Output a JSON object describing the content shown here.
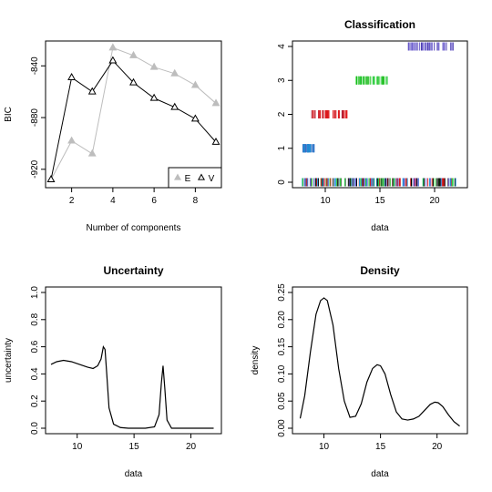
{
  "chart_data": [
    {
      "id": "bic",
      "type": "line",
      "title": "",
      "xlabel": "Number of components",
      "ylabel": "BIC",
      "xlim": [
        1,
        9
      ],
      "ylim": [
        -930,
        -825
      ],
      "xticks": [
        2,
        4,
        6,
        8
      ],
      "yticks": [
        -920,
        -880,
        -840
      ],
      "series": [
        {
          "name": "E",
          "color": "#bdbdbd",
          "marker": "filled-triangle",
          "x": [
            1,
            2,
            3,
            4,
            5,
            6,
            7,
            8,
            9
          ],
          "y": [
            -928,
            -898,
            -908,
            -826,
            -832,
            -841,
            -846,
            -855,
            -869
          ]
        },
        {
          "name": "V",
          "color": "#000000",
          "marker": "open-triangle",
          "x": [
            1,
            2,
            3,
            4,
            5,
            6,
            7,
            8,
            9
          ],
          "y": [
            -928,
            -849,
            -860,
            -836,
            -853,
            -865,
            -872,
            -881,
            -899
          ]
        }
      ],
      "legend": {
        "position": "bottom-right",
        "entries": [
          "E",
          "V"
        ]
      }
    },
    {
      "id": "classification",
      "type": "scatter",
      "title": "Classification",
      "xlabel": "data",
      "ylabel": "",
      "xlim": [
        7.5,
        22.5
      ],
      "ylim": [
        0,
        4
      ],
      "xticks": [
        10,
        15,
        20
      ],
      "yticks": [
        0,
        1,
        2,
        3,
        4
      ],
      "marker": "vertical-bar",
      "classes": [
        {
          "class": 1,
          "x_range": [
            7.9,
            9.0
          ],
          "colors": [
            "#1f8fd6",
            "#3b6fc4"
          ]
        },
        {
          "class": 2,
          "x_range": [
            8.6,
            12.1
          ],
          "colors": [
            "#d7191c",
            "#b2182b",
            "#e31a1c"
          ]
        },
        {
          "class": 3,
          "x_range": [
            12.8,
            15.7
          ],
          "colors": [
            "#2ecc40",
            "#5bd75b",
            "#11b811"
          ]
        },
        {
          "class": 4,
          "x_range": [
            17.6,
            22.0
          ],
          "colors": [
            "#6a5acd",
            "#8a7fd6",
            "#4b3cb3"
          ]
        }
      ],
      "rug_row_colors": [
        "#000000",
        "#6a5acd",
        "#2ecc40",
        "#d7191c",
        "#1f8fd6"
      ]
    },
    {
      "id": "uncertainty",
      "type": "line",
      "title": "Uncertainty",
      "xlabel": "data",
      "ylabel": "uncertainty",
      "xlim": [
        7.7,
        22.2
      ],
      "ylim": [
        0,
        1
      ],
      "xticks": [
        10,
        15,
        20
      ],
      "yticks": [
        0.0,
        0.2,
        0.4,
        0.6,
        0.8,
        1.0
      ],
      "series": [
        {
          "name": "",
          "color": "#000000",
          "x": [
            7.7,
            8.2,
            8.8,
            9.5,
            10.2,
            10.9,
            11.4,
            11.8,
            12.1,
            12.3,
            12.45,
            12.6,
            12.8,
            13.2,
            13.8,
            14.5,
            16.0,
            16.8,
            17.2,
            17.4,
            17.55,
            17.7,
            17.9,
            18.3,
            19.0,
            20.0,
            21.0,
            22.0
          ],
          "y": [
            0.47,
            0.49,
            0.5,
            0.49,
            0.47,
            0.45,
            0.44,
            0.46,
            0.51,
            0.6,
            0.58,
            0.4,
            0.15,
            0.03,
            0.005,
            0.0,
            0.0,
            0.01,
            0.1,
            0.33,
            0.46,
            0.3,
            0.06,
            0.0,
            0.0,
            0.0,
            0.0,
            0.0
          ]
        }
      ]
    },
    {
      "id": "density",
      "type": "line",
      "title": "Density",
      "xlabel": "data",
      "ylabel": "density",
      "xlim": [
        7.7,
        22.2
      ],
      "ylim": [
        0,
        0.25
      ],
      "xticks": [
        10,
        15,
        20
      ],
      "yticks": [
        0.0,
        0.05,
        0.1,
        0.15,
        0.2,
        0.25
      ],
      "series": [
        {
          "name": "",
          "color": "#000000",
          "x": [
            7.9,
            8.3,
            8.8,
            9.3,
            9.7,
            10.0,
            10.3,
            10.8,
            11.3,
            11.8,
            12.3,
            12.8,
            13.3,
            13.8,
            14.3,
            14.7,
            15.0,
            15.4,
            15.9,
            16.4,
            16.9,
            17.4,
            17.9,
            18.4,
            18.9,
            19.4,
            19.8,
            20.1,
            20.5,
            21.0,
            21.5,
            22.0
          ],
          "y": [
            0.018,
            0.06,
            0.14,
            0.21,
            0.235,
            0.24,
            0.235,
            0.19,
            0.11,
            0.05,
            0.02,
            0.022,
            0.045,
            0.085,
            0.11,
            0.117,
            0.115,
            0.1,
            0.062,
            0.03,
            0.017,
            0.015,
            0.017,
            0.022,
            0.033,
            0.044,
            0.048,
            0.047,
            0.04,
            0.025,
            0.012,
            0.004
          ]
        }
      ]
    }
  ]
}
